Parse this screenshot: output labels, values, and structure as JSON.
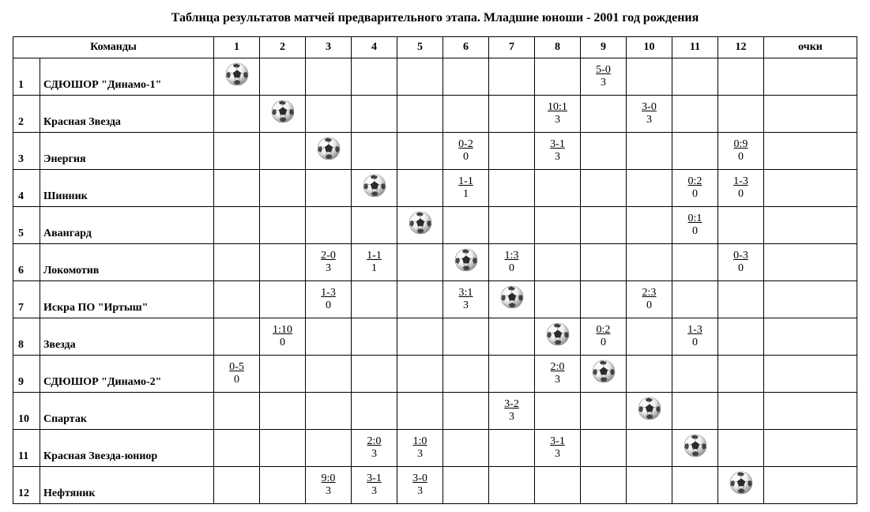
{
  "title": "Таблица результатов матчей предварительного этапа. Младшие юноши - 2001 год рождения",
  "headers": {
    "teams": "Команды",
    "points": "очки"
  },
  "numTeams": 12,
  "teams": [
    "СДЮШОР \"Динамо-1\"",
    "Красная Звезда",
    "Энергия",
    "Шинник",
    "Авангард",
    "Локомотив",
    "Искра ПО \"Иртыш\"",
    "Звезда",
    "СДЮШОР \"Динамо-2\"",
    "Спартак",
    "Красная Звезда-юниор",
    "Нефтяник"
  ],
  "cells": {
    "1": {
      "9": {
        "score": "5-0",
        "pts": "3"
      }
    },
    "2": {
      "8": {
        "score": "10:1",
        "pts": "3"
      },
      "10": {
        "score": "3-0",
        "pts": "3"
      }
    },
    "3": {
      "6": {
        "score": "0-2",
        "pts": "0"
      },
      "8": {
        "score": "3-1",
        "pts": "3"
      },
      "12": {
        "score": "0:9",
        "pts": "0"
      }
    },
    "4": {
      "6": {
        "score": "1-1",
        "pts": "1"
      },
      "11": {
        "score": "0:2",
        "pts": "0"
      },
      "12": {
        "score": "1-3",
        "pts": "0"
      }
    },
    "5": {
      "11": {
        "score": "0:1",
        "pts": "0"
      }
    },
    "6": {
      "3": {
        "score": "2-0",
        "pts": "3"
      },
      "4": {
        "score": "1-1",
        "pts": "1"
      },
      "7": {
        "score": "1:3",
        "pts": "0"
      },
      "12": {
        "score": "0-3",
        "pts": "0"
      }
    },
    "7": {
      "3": {
        "score": "1-3",
        "pts": "0"
      },
      "6": {
        "score": "3:1",
        "pts": "3"
      },
      "10": {
        "score": "2:3",
        "pts": "0"
      }
    },
    "8": {
      "2": {
        "score": "1:10",
        "pts": "0"
      },
      "9": {
        "score": "0:2",
        "pts": "0"
      },
      "11": {
        "score": "1-3",
        "pts": "0"
      }
    },
    "9": {
      "1": {
        "score": "0-5",
        "pts": "0"
      },
      "8": {
        "score": "2:0",
        "pts": "3"
      }
    },
    "10": {
      "7": {
        "score": "3-2",
        "pts": "3"
      }
    },
    "11": {
      "4": {
        "score": "2:0",
        "pts": "3"
      },
      "5": {
        "score": "1:0",
        "pts": "3"
      },
      "8": {
        "score": "3-1",
        "pts": "3"
      }
    },
    "12": {
      "3": {
        "score": "9:0",
        "pts": "3"
      },
      "4": {
        "score": "3-1",
        "pts": "3"
      },
      "5": {
        "score": "3-0",
        "pts": "3"
      }
    }
  },
  "ball": {
    "size": 30,
    "base": "#f2f2f2",
    "shade": "#9a9a9a",
    "pentagon": "#2b2b2b"
  }
}
